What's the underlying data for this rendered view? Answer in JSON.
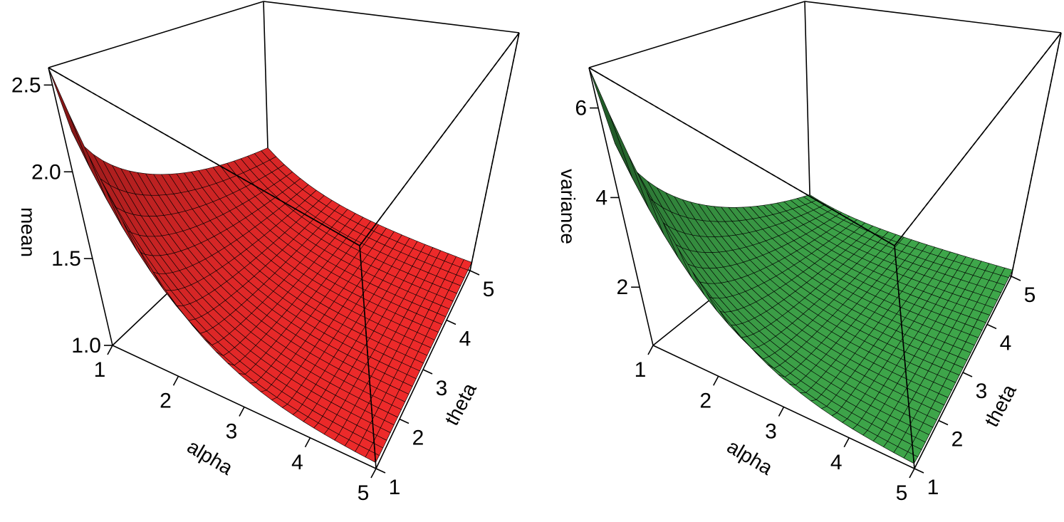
{
  "chart_data": [
    {
      "type": "surface",
      "surface_color": "#ee2a2a",
      "xlabel": "alpha",
      "ylabel": "theta",
      "zlabel": "mean",
      "xlim": [
        1,
        5
      ],
      "ylim": [
        1,
        5
      ],
      "zlim": [
        1.0,
        2.6
      ],
      "x_ticks": [
        "1",
        "2",
        "3",
        "4",
        "5"
      ],
      "y_ticks": [
        "1",
        "2",
        "3",
        "4",
        "5"
      ],
      "z_ticks": [
        "1.0",
        "1.5",
        "2.0",
        "2.5"
      ],
      "corner_values": {
        "alpha1_theta1": 2.6,
        "alpha1_theta5": 1.4,
        "alpha5_theta1": 1.02,
        "alpha5_theta5": 1.05
      }
    },
    {
      "type": "surface",
      "surface_color": "#3ea64a",
      "xlabel": "alpha",
      "ylabel": "theta",
      "zlabel": "variance",
      "xlim": [
        1,
        5
      ],
      "ylim": [
        1,
        5
      ],
      "zlim": [
        0.7,
        6.9
      ],
      "x_ticks": [
        "1",
        "2",
        "3",
        "4",
        "5"
      ],
      "y_ticks": [
        "1",
        "2",
        "3",
        "4",
        "5"
      ],
      "z_ticks": [
        "2",
        "4",
        "6"
      ],
      "corner_values": {
        "alpha1_theta1": 6.9,
        "alpha1_theta5": 1.4,
        "alpha5_theta1": 0.75,
        "alpha5_theta5": 0.85
      }
    }
  ]
}
